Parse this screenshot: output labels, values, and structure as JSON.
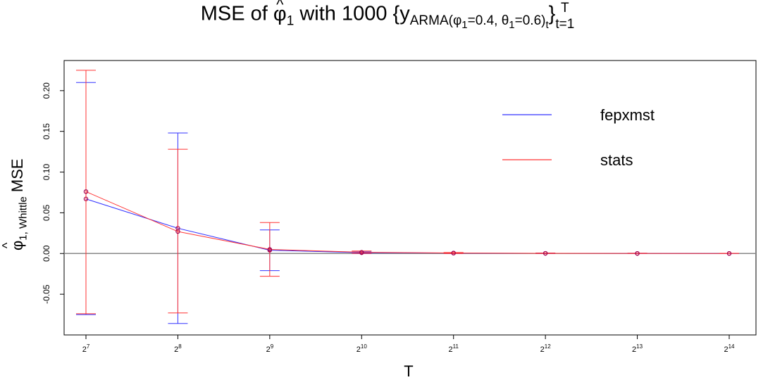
{
  "title": {
    "prefix": "MSE of ",
    "phi": "φ",
    "phi_sub": "1",
    "middle": " with 1000  {y",
    "arma": "ARMA(",
    "phi1": "φ",
    "phi1_sub": "1",
    "phi1_val": "=0.4, ",
    "theta1": "θ",
    "theta1_sub": "1",
    "theta1_val": "=0.6)",
    "t_sub": "t",
    "close": "}",
    "sup_T": "T",
    "sub_t1": "t=1"
  },
  "ylabel": {
    "phi": "φ",
    "sub": "1,  Whittle",
    "rest": " MSE"
  },
  "chart_data": {
    "type": "line",
    "title": "MSE of φ̂1 with 1000 {yARMA(φ1=0.4, θ1=0.6)t}Tt=1",
    "xlabel": "T",
    "ylabel": "φ̂1, Whittle MSE",
    "categories": [
      "2^7",
      "2^8",
      "2^9",
      "2^10",
      "2^11",
      "2^12",
      "2^13",
      "2^14"
    ],
    "x_tick_base": "2",
    "x_tick_exponents": [
      "7",
      "8",
      "9",
      "10",
      "11",
      "12",
      "13",
      "14"
    ],
    "y_ticks": [
      "-0.05",
      "0.00",
      "0.05",
      "0.10",
      "0.15",
      "0.20"
    ],
    "ylim": [
      -0.1,
      0.237
    ],
    "grid": false,
    "reference_line_y": 0,
    "legend_placement": "top-right",
    "series": [
      {
        "name": "fepxmst",
        "color": "#3333ff",
        "values": [
          0.067,
          0.031,
          0.004,
          0.001,
          0.0005,
          0.0002,
          0.0001,
          5e-05
        ],
        "err_low": [
          -0.075,
          -0.086,
          -0.021,
          0.0,
          0.0,
          0.0,
          0.0,
          0.0
        ],
        "err_high": [
          0.21,
          0.148,
          0.029,
          0.002,
          0.001,
          0.0006,
          0.0003,
          0.0002
        ]
      },
      {
        "name": "stats",
        "color": "#ff3333",
        "values": [
          0.076,
          0.027,
          0.005,
          0.0015,
          0.0006,
          0.0002,
          0.0001,
          5e-05
        ],
        "err_low": [
          -0.074,
          -0.073,
          -0.028,
          0.0,
          0.0,
          0.0,
          0.0,
          0.0
        ],
        "err_high": [
          0.225,
          0.128,
          0.038,
          0.003,
          0.0012,
          0.0006,
          0.0003,
          0.0002
        ]
      }
    ],
    "overlap_color": "#a0004f"
  }
}
